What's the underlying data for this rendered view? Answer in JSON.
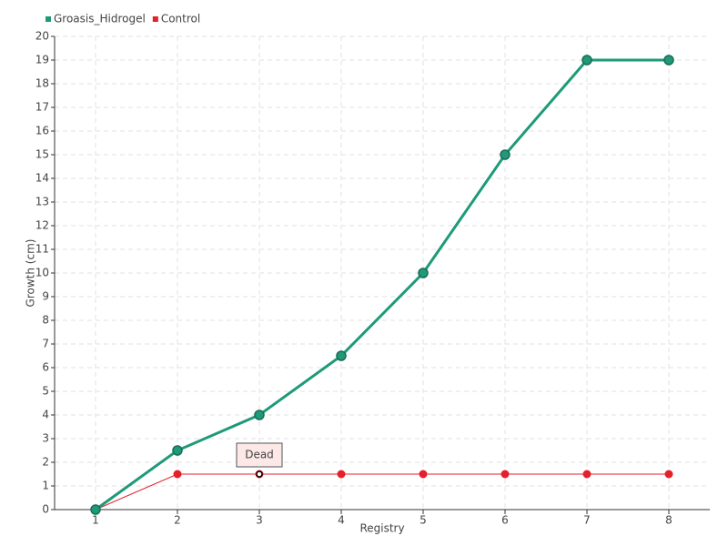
{
  "chart_data": {
    "type": "line",
    "x_label": "Registry",
    "y_label": "Growth (cm)",
    "categories": [
      "1",
      "2",
      "3",
      "4",
      "5",
      "6",
      "7",
      "8"
    ],
    "series": [
      {
        "name": "Groasis_Hidrogel",
        "color": "#1f9a78",
        "values": [
          0,
          2.5,
          4,
          6.5,
          10,
          15,
          19,
          19
        ]
      },
      {
        "name": "Control",
        "color": "#e3202b",
        "values": [
          0,
          1.5,
          1.5,
          1.5,
          1.5,
          1.5,
          1.5,
          1.5
        ]
      }
    ],
    "annotations": [
      {
        "text": "Dead"
      }
    ],
    "ylim": [
      0,
      20
    ],
    "yticks": [
      0,
      1,
      2,
      3,
      4,
      5,
      6,
      7,
      8,
      9,
      10,
      11,
      12,
      13,
      14,
      15,
      16,
      17,
      18,
      19,
      20
    ],
    "grid": true,
    "legend": "top-left"
  }
}
